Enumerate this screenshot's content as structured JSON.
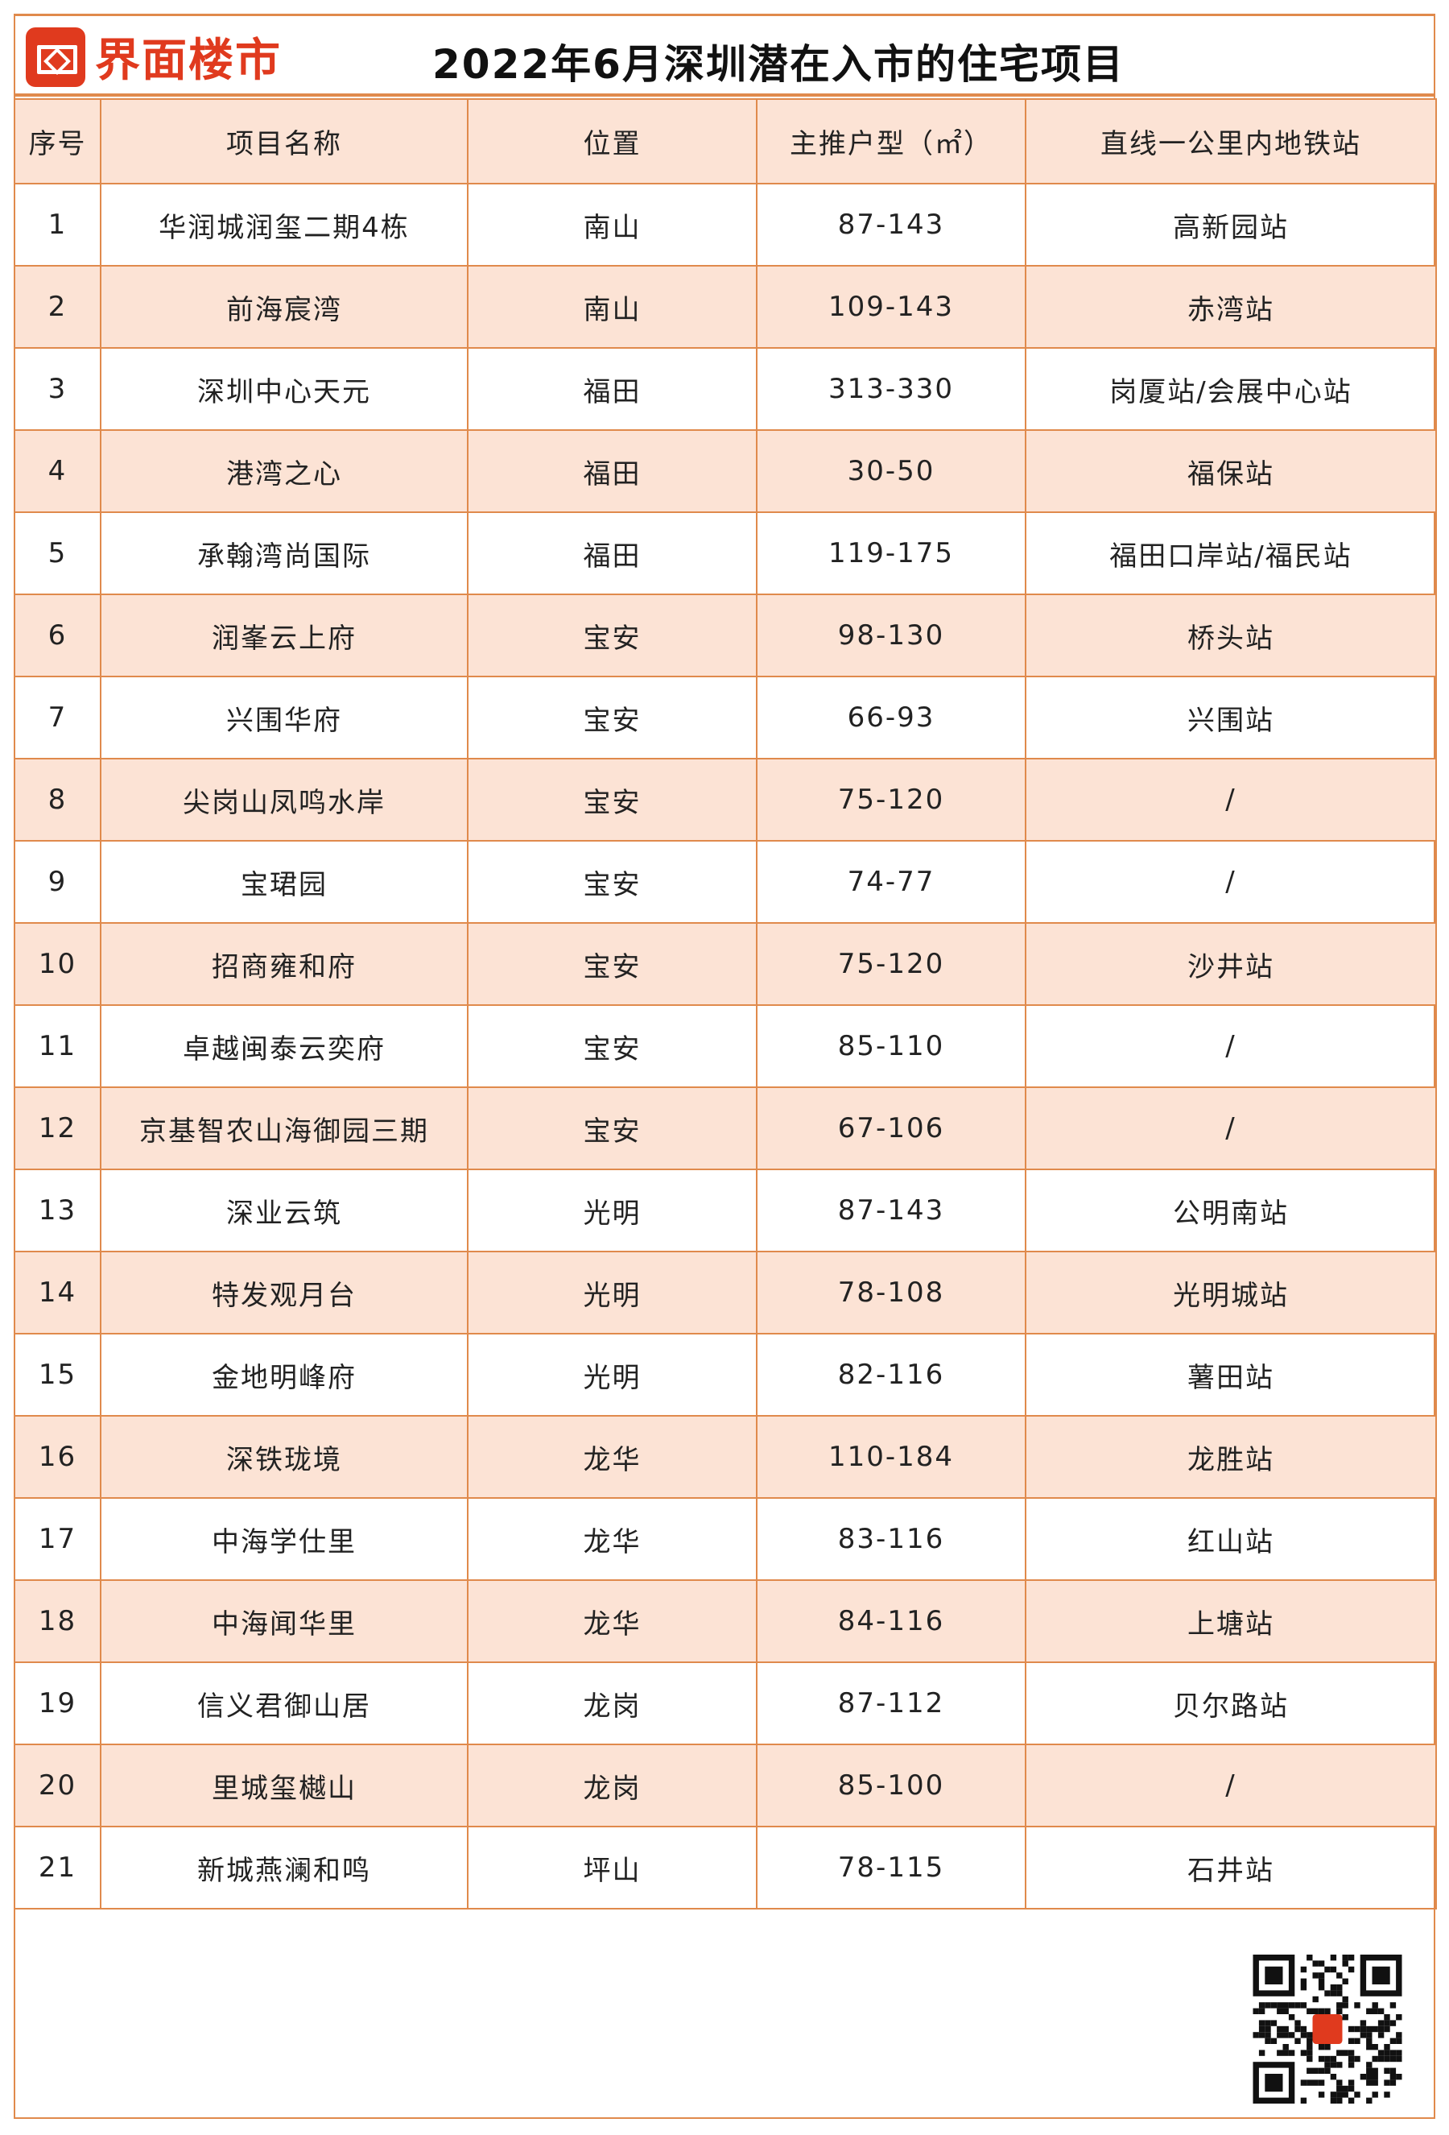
{
  "brand": {
    "logo_text": "界面楼市",
    "color": "#e03a1e"
  },
  "title": "2022年6月深圳潜在入市的住宅项目",
  "accent_color": "#e08a4c",
  "row_alt_color": "#fce3d5",
  "table": {
    "headers": [
      "序号",
      "项目名称",
      "位置",
      "主推户型（㎡）",
      "直线一公里内地铁站"
    ],
    "rows": [
      [
        "1",
        "华润城润玺二期4栋",
        "南山",
        "87-143",
        "高新园站"
      ],
      [
        "2",
        "前海宸湾",
        "南山",
        "109-143",
        "赤湾站"
      ],
      [
        "3",
        "深圳中心天元",
        "福田",
        "313-330",
        "岗厦站/会展中心站"
      ],
      [
        "4",
        "港湾之心",
        "福田",
        "30-50",
        "福保站"
      ],
      [
        "5",
        "承翰湾尚国际",
        "福田",
        "119-175",
        "福田口岸站/福民站"
      ],
      [
        "6",
        "润峯云上府",
        "宝安",
        "98-130",
        "桥头站"
      ],
      [
        "7",
        "兴围华府",
        "宝安",
        "66-93",
        "兴围站"
      ],
      [
        "8",
        "尖岗山凤鸣水岸",
        "宝安",
        "75-120",
        "/"
      ],
      [
        "9",
        "宝珺园",
        "宝安",
        "74-77",
        "/"
      ],
      [
        "10",
        "招商雍和府",
        "宝安",
        "75-120",
        "沙井站"
      ],
      [
        "11",
        "卓越闽泰云奕府",
        "宝安",
        "85-110",
        "/"
      ],
      [
        "12",
        "京基智农山海御园三期",
        "宝安",
        "67-106",
        "/"
      ],
      [
        "13",
        "深业云筑",
        "光明",
        "87-143",
        "公明南站"
      ],
      [
        "14",
        "特发观月台",
        "光明",
        "78-108",
        "光明城站"
      ],
      [
        "15",
        "金地明峰府",
        "光明",
        "82-116",
        "薯田站"
      ],
      [
        "16",
        "深铁珑境",
        "龙华",
        "110-184",
        "龙胜站"
      ],
      [
        "17",
        "中海学仕里",
        "龙华",
        "83-116",
        "红山站"
      ],
      [
        "18",
        "中海闻华里",
        "龙华",
        "84-116",
        "上塘站"
      ],
      [
        "19",
        "信义君御山居",
        "龙岗",
        "87-112",
        "贝尔路站"
      ],
      [
        "20",
        "里城玺樾山",
        "龙岗",
        "85-100",
        "/"
      ],
      [
        "21",
        "新城燕澜和鸣",
        "坪山",
        "78-115",
        "石井站"
      ]
    ]
  },
  "qr_code": {
    "icon": "qr-code-icon"
  }
}
